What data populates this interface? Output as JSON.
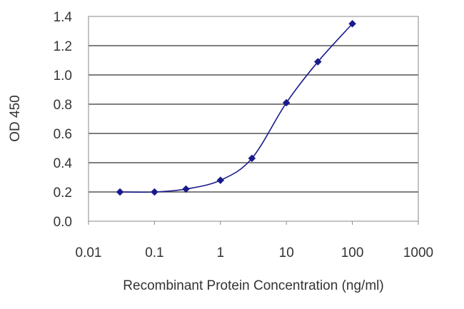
{
  "chart_data": {
    "type": "line",
    "title": "",
    "xlabel": "Recombinant Protein Concentration (ng/ml)",
    "ylabel": "OD 450",
    "x_scale": "log",
    "xlim": [
      0.01,
      1000
    ],
    "ylim": [
      0.0,
      1.4
    ],
    "x_ticks": [
      "0.01",
      "0.1",
      "1",
      "10",
      "100",
      "1000"
    ],
    "y_ticks": [
      "0.0",
      "0.2",
      "0.4",
      "0.6",
      "0.8",
      "1.0",
      "1.2",
      "1.4"
    ],
    "grid": {
      "horizontal": true,
      "vertical": false
    },
    "legend": "none",
    "series": [
      {
        "color": "#1a1a8c",
        "points": [
          {
            "x": 0.03,
            "y": 0.2
          },
          {
            "x": 0.1,
            "y": 0.2
          },
          {
            "x": 0.3,
            "y": 0.22
          },
          {
            "x": 1,
            "y": 0.28
          },
          {
            "x": 3,
            "y": 0.43
          },
          {
            "x": 10,
            "y": 0.81
          },
          {
            "x": 30,
            "y": 1.09
          },
          {
            "x": 100,
            "y": 1.35
          }
        ]
      }
    ]
  }
}
